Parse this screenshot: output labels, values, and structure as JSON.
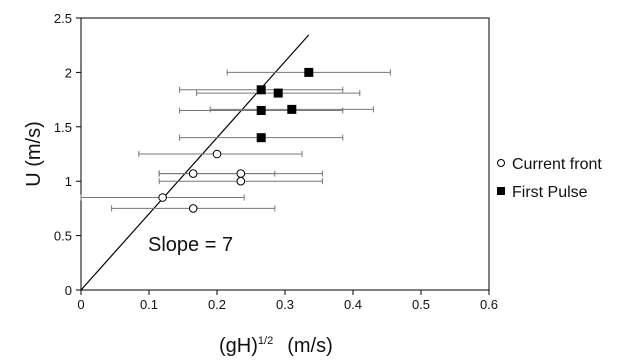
{
  "chart_data": {
    "type": "scatter",
    "xlabel_main": "(gH)",
    "xlabel_sup": "1/2",
    "xlabel_unit": "(m/s)",
    "ylabel": "U (m/s)",
    "xlim": [
      0,
      0.6
    ],
    "ylim": [
      0,
      2.5
    ],
    "x_ticks": [
      0,
      0.1,
      0.2,
      0.3,
      0.4,
      0.5,
      0.6
    ],
    "x_tick_labels": [
      "0",
      "0.1",
      "0.2",
      "0.3",
      "0.4",
      "0.5",
      "0.6"
    ],
    "y_ticks": [
      0,
      0.5,
      1,
      1.5,
      2,
      2.5
    ],
    "y_tick_labels": [
      "0",
      "0.5",
      "1",
      "1.5",
      "2",
      "2.5"
    ],
    "grid": false,
    "legend_position": "right",
    "series": [
      {
        "name": "Current front",
        "marker": "open-circle",
        "points": [
          {
            "x": 0.2,
            "y": 1.25,
            "xerr_low": 0.085,
            "xerr_high": 0.325
          },
          {
            "x": 0.165,
            "y": 1.07,
            "xerr_low": 0.115,
            "xerr_high": 0.285
          },
          {
            "x": 0.235,
            "y": 1.07,
            "xerr_low": 0.115,
            "xerr_high": 0.355
          },
          {
            "x": 0.235,
            "y": 1.0,
            "xerr_low": 0.115,
            "xerr_high": 0.355
          },
          {
            "x": 0.12,
            "y": 0.85,
            "xerr_low": 0.0,
            "xerr_high": 0.24
          },
          {
            "x": 0.165,
            "y": 0.75,
            "xerr_low": 0.045,
            "xerr_high": 0.285
          }
        ]
      },
      {
        "name": "First Pulse",
        "marker": "filled-square",
        "points": [
          {
            "x": 0.335,
            "y": 2.0,
            "xerr_low": 0.215,
            "xerr_high": 0.455
          },
          {
            "x": 0.265,
            "y": 1.84,
            "xerr_low": 0.145,
            "xerr_high": 0.385
          },
          {
            "x": 0.29,
            "y": 1.81,
            "xerr_low": 0.17,
            "xerr_high": 0.41
          },
          {
            "x": 0.265,
            "y": 1.65,
            "xerr_low": 0.145,
            "xerr_high": 0.385
          },
          {
            "x": 0.31,
            "y": 1.66,
            "xerr_low": 0.19,
            "xerr_high": 0.43
          },
          {
            "x": 0.265,
            "y": 1.4,
            "xerr_low": 0.145,
            "xerr_high": 0.385
          }
        ]
      }
    ],
    "reference_line": {
      "slope": 7,
      "x_start": 0,
      "x_end": 0.335
    },
    "annotation": "Slope = 7"
  }
}
